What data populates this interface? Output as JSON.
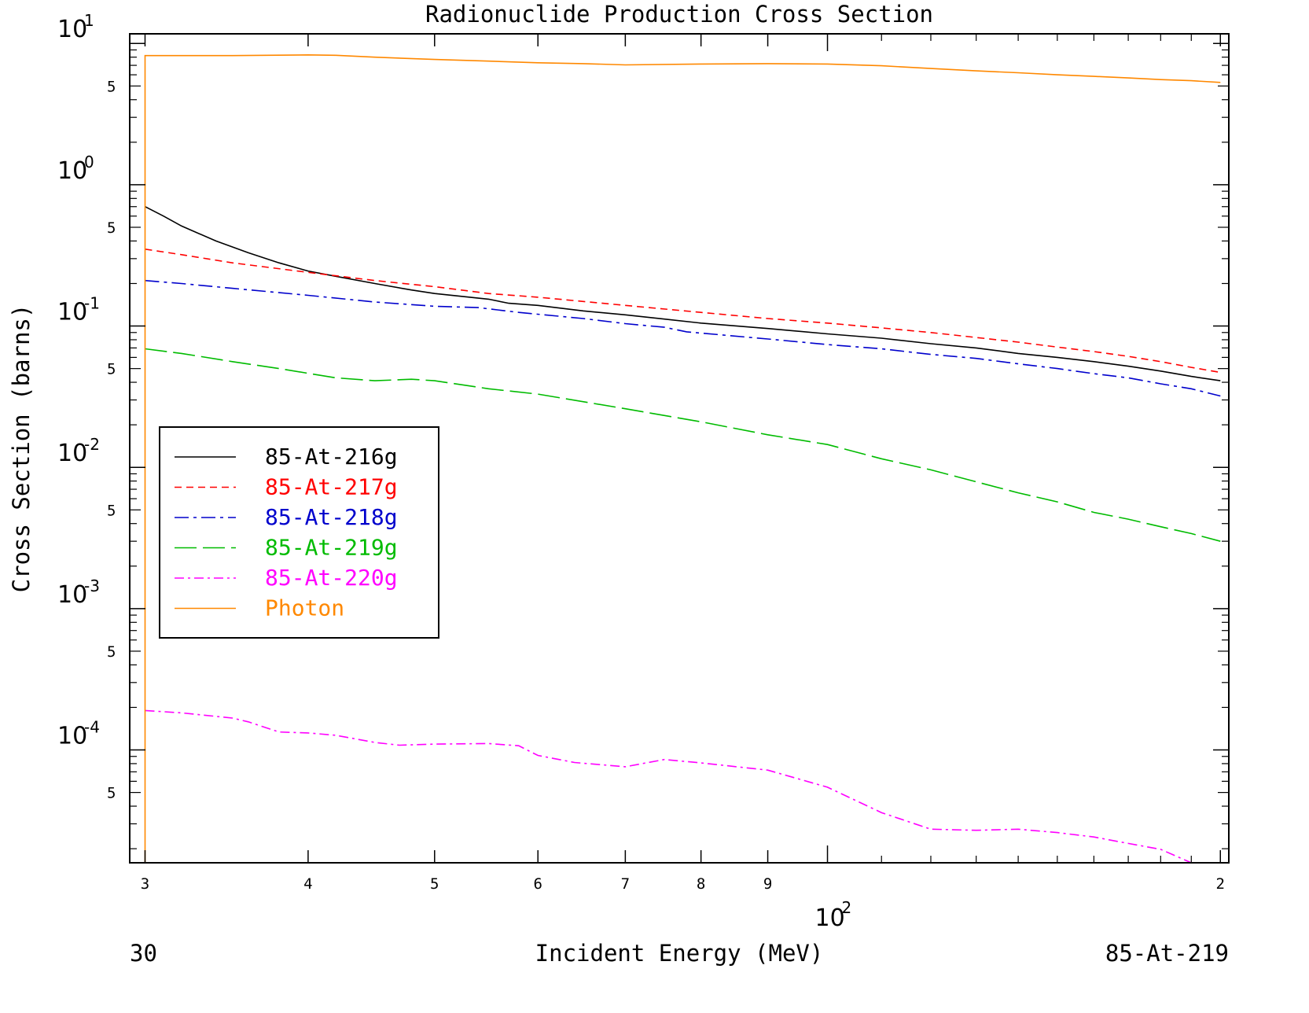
{
  "chart_data": {
    "type": "line",
    "title": "Radionuclide Production Cross Section",
    "xlabel": "Incident Energy (MeV)",
    "ylabel": "Cross Section (barns)",
    "x_scale": "log",
    "y_scale": "log",
    "xlim": [
      29.2,
      203
    ],
    "ylim": [
      1.59e-05,
      11.7
    ],
    "x_ticks": [
      {
        "value": 30,
        "label": "3"
      },
      {
        "value": 40,
        "label": "4"
      },
      {
        "value": 50,
        "label": "5"
      },
      {
        "value": 60,
        "label": "6"
      },
      {
        "value": 70,
        "label": "7"
      },
      {
        "value": 80,
        "label": "8"
      },
      {
        "value": 90,
        "label": "9"
      },
      {
        "value": 200,
        "label": "2"
      }
    ],
    "x_decade_label": {
      "base": "10",
      "exp": "2",
      "value": 100
    },
    "y_decades": [
      {
        "value": 10,
        "base": "10",
        "exp": "1"
      },
      {
        "value": 1,
        "base": "10",
        "exp": "0"
      },
      {
        "value": 0.1,
        "base": "10",
        "exp": "-1"
      },
      {
        "value": 0.01,
        "base": "10",
        "exp": "-2"
      },
      {
        "value": 0.001,
        "base": "10",
        "exp": "-3"
      },
      {
        "value": 0.0001,
        "base": "10",
        "exp": "-4"
      }
    ],
    "y_minor_label": "5",
    "legend_position": "left-middle",
    "corner_left": "30",
    "corner_right": "85-At-219",
    "series": [
      {
        "name": "85-At-216g",
        "color": "#000000",
        "dash": "none",
        "x": [
          30,
          31,
          32,
          34,
          36,
          38,
          40,
          42,
          45,
          48,
          50,
          55,
          57,
          60,
          65,
          70,
          75,
          80,
          90,
          100,
          110,
          120,
          130,
          140,
          150,
          160,
          170,
          180,
          190,
          200
        ],
        "y": [
          0.7,
          0.6,
          0.51,
          0.4,
          0.33,
          0.28,
          0.245,
          0.225,
          0.2,
          0.18,
          0.17,
          0.155,
          0.145,
          0.14,
          0.128,
          0.12,
          0.112,
          0.105,
          0.096,
          0.088,
          0.082,
          0.075,
          0.07,
          0.064,
          0.06,
          0.056,
          0.052,
          0.048,
          0.044,
          0.041
        ]
      },
      {
        "name": "85-At-217g",
        "color": "#ff0000",
        "dash": "9,6",
        "x": [
          30,
          32,
          35,
          40,
          45,
          50,
          55,
          60,
          70,
          80,
          90,
          100,
          110,
          120,
          130,
          140,
          150,
          160,
          170,
          180,
          190,
          200
        ],
        "y": [
          0.35,
          0.32,
          0.28,
          0.24,
          0.21,
          0.19,
          0.17,
          0.16,
          0.14,
          0.125,
          0.113,
          0.105,
          0.097,
          0.09,
          0.083,
          0.077,
          0.071,
          0.066,
          0.061,
          0.056,
          0.051,
          0.047
        ]
      },
      {
        "name": "85-At-218g",
        "color": "#0000cc",
        "dash": "18,6,4,6",
        "x": [
          30,
          32,
          35,
          40,
          45,
          50,
          54,
          58,
          65,
          70,
          75,
          78,
          90,
          100,
          110,
          120,
          130,
          140,
          150,
          160,
          170,
          180,
          190,
          200
        ],
        "y": [
          0.21,
          0.2,
          0.185,
          0.165,
          0.148,
          0.138,
          0.135,
          0.125,
          0.113,
          0.104,
          0.098,
          0.091,
          0.081,
          0.074,
          0.069,
          0.063,
          0.059,
          0.054,
          0.05,
          0.046,
          0.043,
          0.039,
          0.036,
          0.032
        ]
      },
      {
        "name": "85-At-219g",
        "color": "#00bb00",
        "dash": "28,8",
        "x": [
          30,
          32,
          35,
          38,
          42,
          45,
          48,
          50,
          55,
          60,
          70,
          80,
          90,
          100,
          110,
          120,
          130,
          140,
          150,
          160,
          170,
          180,
          190,
          200
        ],
        "y": [
          0.069,
          0.064,
          0.056,
          0.05,
          0.043,
          0.041,
          0.042,
          0.041,
          0.036,
          0.033,
          0.026,
          0.021,
          0.017,
          0.0145,
          0.0115,
          0.0096,
          0.0079,
          0.0066,
          0.0057,
          0.0048,
          0.0043,
          0.0038,
          0.0034,
          0.003
        ]
      },
      {
        "name": "85-At-220g",
        "color": "#ff00ff",
        "dash": "12,5,3,5",
        "x": [
          30,
          32,
          35,
          36,
          38,
          40,
          42,
          45,
          47,
          50,
          55,
          58,
          60,
          64,
          70,
          75,
          80,
          90,
          100,
          110,
          120,
          130,
          140,
          150,
          160,
          170,
          180,
          190,
          200
        ],
        "y": [
          0.00019,
          0.000183,
          0.000168,
          0.000158,
          0.000134,
          0.000132,
          0.000127,
          0.000113,
          0.000108,
          0.00011,
          0.000111,
          0.000107,
          9.15e-05,
          8.15e-05,
          7.6e-05,
          8.55e-05,
          8.1e-05,
          7.2e-05,
          5.45e-05,
          3.6e-05,
          2.75e-05,
          2.7e-05,
          2.75e-05,
          2.6e-05,
          2.42e-05,
          2.18e-05,
          1.98e-05,
          1.53e-05,
          1.11e-05
        ]
      },
      {
        "name": "Photon",
        "color": "#ff8800",
        "dash": "none",
        "x": [
          30,
          30,
          32,
          35,
          40,
          42,
          45,
          50,
          55,
          60,
          65,
          70,
          80,
          90,
          100,
          110,
          120,
          130,
          140,
          150,
          160,
          170,
          180,
          190,
          200
        ],
        "y": [
          1.59e-05,
          8.2,
          8.2,
          8.2,
          8.3,
          8.25,
          8.0,
          7.7,
          7.5,
          7.3,
          7.2,
          7.05,
          7.15,
          7.2,
          7.15,
          6.95,
          6.65,
          6.4,
          6.2,
          6.0,
          5.85,
          5.7,
          5.55,
          5.45,
          5.3
        ]
      }
    ]
  }
}
